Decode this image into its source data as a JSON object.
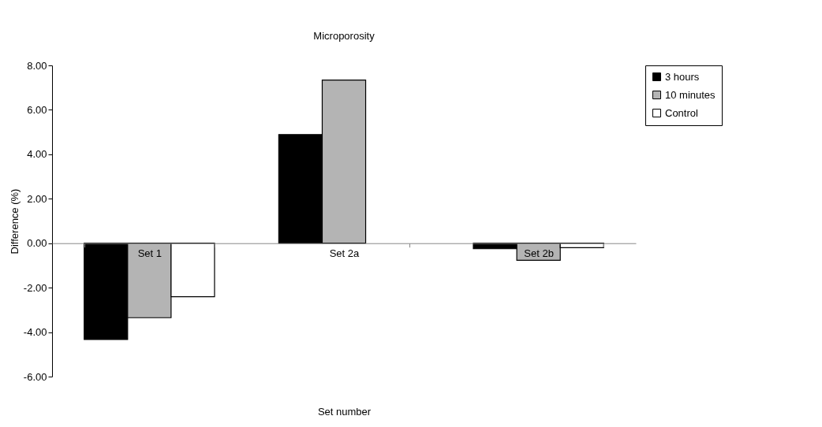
{
  "chart_data": {
    "type": "bar",
    "title": "Microporosity",
    "xlabel": "Set number",
    "ylabel": "Difference (%)",
    "categories": [
      "Set 1",
      "Set 2a",
      "Set 2b"
    ],
    "series": [
      {
        "name": "3 hours",
        "color": "#000000",
        "values": [
          -4.33,
          4.89,
          -0.25
        ]
      },
      {
        "name": "10 minutes",
        "color": "#b4b4b4",
        "values": [
          -3.35,
          7.34,
          -0.77
        ]
      },
      {
        "name": "Control",
        "color": "#ffffff",
        "values": [
          -2.41,
          null,
          -0.2
        ]
      }
    ],
    "ylim": [
      -6,
      8
    ],
    "yticks": [
      {
        "value": -6,
        "label": "-6.00"
      },
      {
        "value": -4,
        "label": "-4.00"
      },
      {
        "value": -2,
        "label": "-2.00"
      },
      {
        "value": 0,
        "label": "0.00"
      },
      {
        "value": 2,
        "label": "2.00"
      },
      {
        "value": 4,
        "label": "4.00"
      },
      {
        "value": 6,
        "label": "6.00"
      },
      {
        "value": 8,
        "label": "8.00"
      }
    ],
    "grid": false,
    "legend": "right"
  }
}
